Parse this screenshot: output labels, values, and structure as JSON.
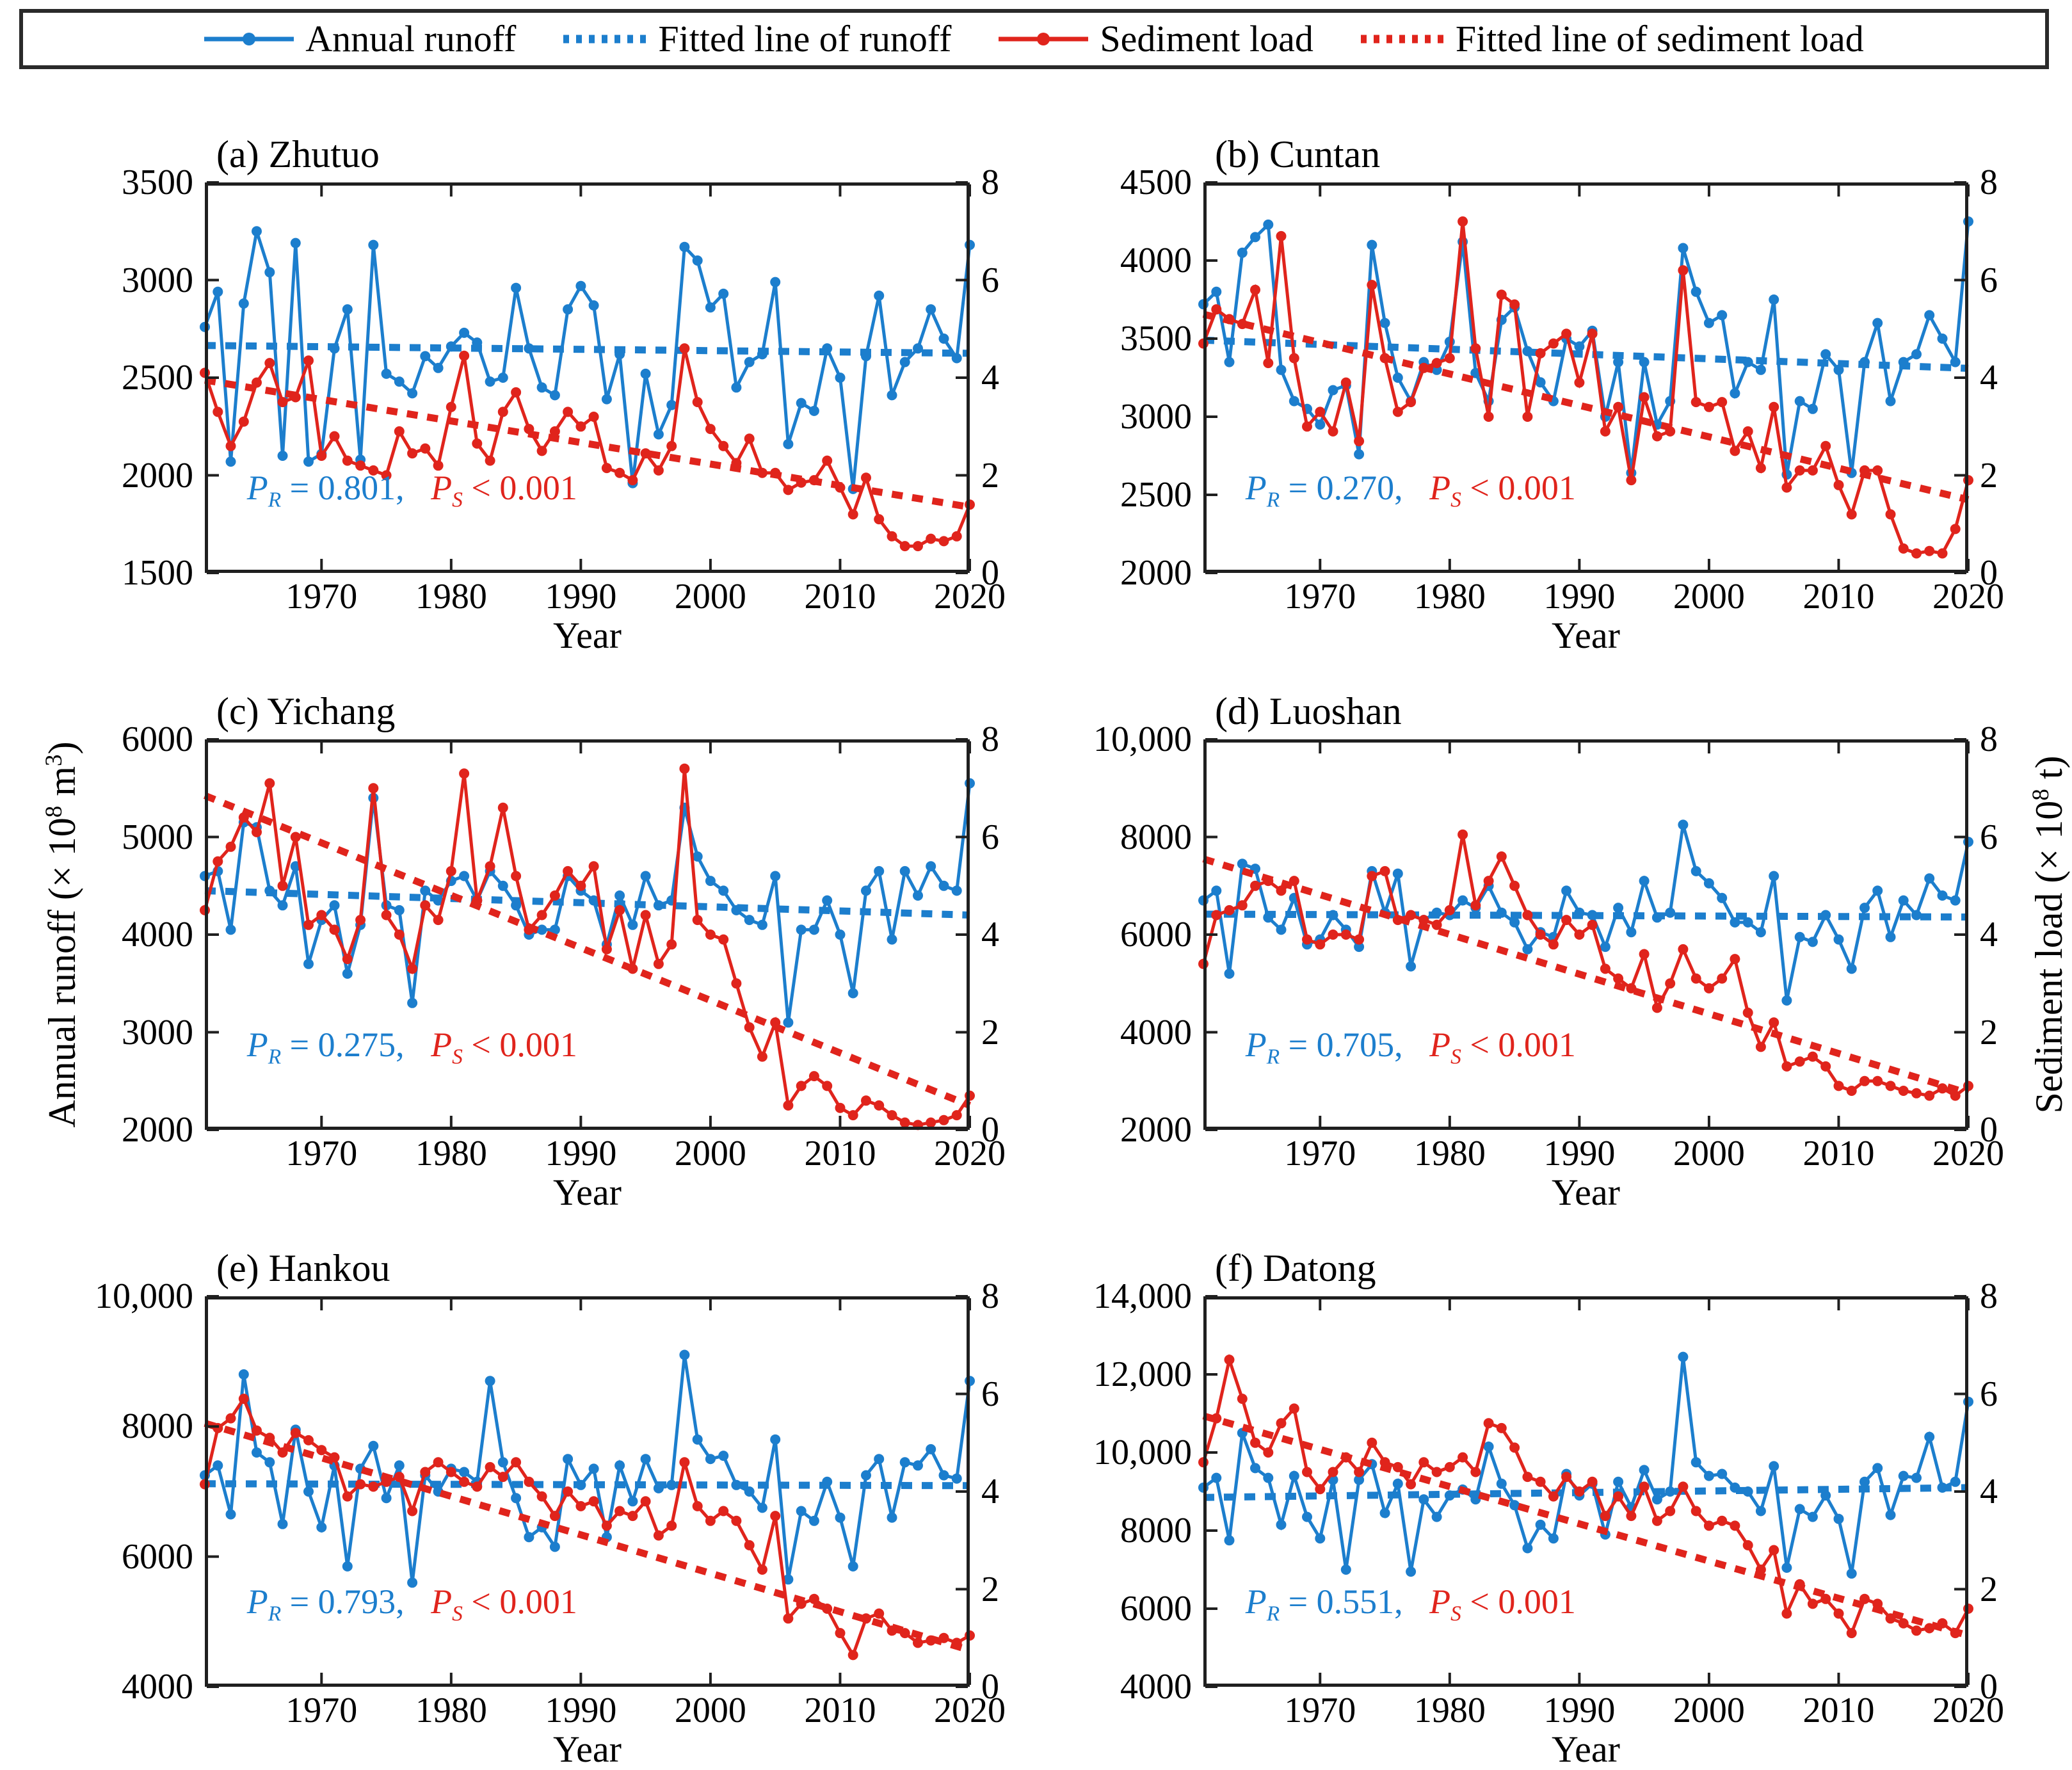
{
  "colors": {
    "runoff": "#1c7ecd",
    "sediment": "#e0241c",
    "spine": "#1f1f1f"
  },
  "legend": {
    "items": [
      {
        "name": "annual-runoff",
        "label": "Annual runoff",
        "style": "line-marker",
        "series": "runoff"
      },
      {
        "name": "fitted-line-of-runoff",
        "label": "Fitted line of runoff",
        "style": "dashed",
        "series": "runoff"
      },
      {
        "name": "sediment-load",
        "label": "Sediment load",
        "style": "line-marker",
        "series": "sediment"
      },
      {
        "name": "fitted-line-of-sediment-load",
        "label": "Fitted line of sediment load",
        "style": "dashed",
        "series": "sediment"
      }
    ]
  },
  "axes": {
    "left_label": "Annual runoff (× 10^8 m^3)",
    "right_label": "Sediment load (× 10^8 t)",
    "x_label": "Year",
    "x_start": 1961,
    "x_end": 2020,
    "x_ticks": [
      1970,
      1980,
      1990,
      2000,
      2010,
      2020
    ],
    "right_ticks": [
      0,
      2,
      4,
      6,
      8
    ],
    "right_lim": [
      0,
      8
    ]
  },
  "annotation_glyphs": {
    "p": "P",
    "sub_r": "R",
    "sub_s": "S"
  },
  "chart_data": [
    {
      "type": "line",
      "id": "a",
      "title": "(a) Zhutuo",
      "station": "Zhutuo",
      "ylim_left": [
        1500,
        3500
      ],
      "yticks_left": [
        "1500",
        "2000",
        "2500",
        "3000",
        "3500"
      ],
      "pr": "= 0.801",
      "ps": "< 0.001",
      "runoff": [
        2760,
        2940,
        2070,
        2880,
        3250,
        3040,
        2100,
        3190,
        2070,
        2110,
        2650,
        2850,
        2080,
        3180,
        2520,
        2480,
        2420,
        2610,
        2550,
        2660,
        2730,
        2680,
        2480,
        2500,
        2960,
        2650,
        2450,
        2410,
        2850,
        2970,
        2870,
        2390,
        2620,
        1960,
        2520,
        2210,
        2360,
        3170,
        3100,
        2860,
        2930,
        2450,
        2580,
        2620,
        2990,
        2160,
        2370,
        2330,
        2650,
        2500,
        1930,
        2610,
        2920,
        2410,
        2580,
        2650,
        2850,
        2700,
        2600,
        3180
      ],
      "sediment": [
        4.1,
        3.3,
        2.6,
        3.1,
        3.9,
        4.3,
        3.5,
        3.6,
        4.35,
        2.4,
        2.8,
        2.3,
        2.2,
        2.1,
        2.0,
        2.9,
        2.45,
        2.55,
        2.2,
        3.4,
        4.45,
        2.65,
        2.3,
        3.3,
        3.7,
        2.95,
        2.5,
        2.9,
        3.3,
        3.0,
        3.2,
        2.15,
        2.05,
        1.9,
        2.45,
        2.1,
        2.6,
        4.6,
        3.5,
        2.95,
        2.6,
        2.25,
        2.75,
        2.05,
        2.05,
        1.7,
        1.85,
        1.9,
        2.3,
        1.75,
        1.2,
        1.95,
        1.1,
        0.75,
        0.55,
        0.55,
        0.7,
        0.65,
        0.75,
        1.4
      ],
      "runoff_fit": [
        2665,
        2625
      ],
      "sediment_fit": [
        3.95,
        1.35
      ]
    },
    {
      "type": "line",
      "id": "b",
      "title": "(b) Cuntan",
      "station": "Cuntan",
      "ylim_left": [
        2000,
        4500
      ],
      "yticks_left": [
        "2000",
        "2500",
        "3000",
        "3500",
        "4000",
        "4500"
      ],
      "pr": "= 0.270",
      "ps": "< 0.001",
      "runoff": [
        3720,
        3800,
        3350,
        4050,
        4150,
        4230,
        3300,
        3100,
        3050,
        2950,
        3170,
        3200,
        2760,
        4100,
        3600,
        3250,
        3100,
        3350,
        3300,
        3480,
        4120,
        3280,
        3100,
        3620,
        3700,
        3420,
        3220,
        3100,
        3500,
        3450,
        3550,
        3000,
        3350,
        2640,
        3350,
        2950,
        3100,
        4080,
        3800,
        3600,
        3650,
        3150,
        3350,
        3300,
        3750,
        2630,
        3100,
        3050,
        3400,
        3300,
        2640,
        3350,
        3600,
        3100,
        3350,
        3400,
        3650,
        3500,
        3350,
        4250
      ],
      "sediment": [
        4.7,
        5.4,
        5.2,
        5.1,
        5.8,
        4.3,
        6.9,
        4.4,
        3.0,
        3.3,
        2.9,
        3.9,
        2.7,
        5.9,
        4.4,
        3.3,
        3.5,
        4.2,
        4.3,
        4.4,
        7.2,
        4.6,
        3.2,
        5.7,
        5.5,
        3.2,
        4.5,
        4.7,
        4.9,
        3.9,
        4.9,
        2.9,
        3.4,
        1.9,
        3.6,
        2.8,
        2.9,
        6.2,
        3.5,
        3.4,
        3.5,
        2.5,
        2.9,
        2.15,
        3.4,
        1.75,
        2.1,
        2.1,
        2.6,
        1.8,
        1.2,
        2.1,
        2.1,
        1.2,
        0.5,
        0.4,
        0.45,
        0.4,
        0.9,
        1.9
      ],
      "runoff_fit": [
        3490,
        3310
      ],
      "sediment_fit": [
        5.3,
        1.5
      ]
    },
    {
      "type": "line",
      "id": "c",
      "title": "(c) Yichang",
      "station": "Yichang",
      "ylim_left": [
        2000,
        6000
      ],
      "yticks_left": [
        "2000",
        "3000",
        "4000",
        "5000",
        "6000"
      ],
      "pr": "= 0.275",
      "ps": "< 0.001",
      "runoff": [
        4600,
        4650,
        4050,
        5150,
        5100,
        4450,
        4300,
        4700,
        3700,
        4150,
        4300,
        3600,
        4100,
        5400,
        4300,
        4250,
        3300,
        4450,
        4350,
        4550,
        4600,
        4350,
        4650,
        4500,
        4300,
        4000,
        4050,
        4050,
        4600,
        4450,
        4350,
        3900,
        4400,
        4100,
        4600,
        4300,
        4350,
        5300,
        4800,
        4550,
        4450,
        4250,
        4150,
        4100,
        4600,
        3100,
        4050,
        4050,
        4350,
        4000,
        3400,
        4450,
        4650,
        3950,
        4650,
        4400,
        4700,
        4500,
        4450,
        5550
      ],
      "sediment": [
        4.5,
        5.5,
        5.8,
        6.4,
        6.1,
        7.1,
        5.0,
        6.0,
        4.2,
        4.4,
        4.1,
        3.5,
        4.3,
        7.0,
        4.4,
        4.0,
        3.3,
        4.6,
        4.3,
        5.3,
        7.3,
        4.7,
        5.4,
        6.6,
        5.2,
        4.1,
        4.4,
        4.8,
        5.3,
        5.0,
        5.4,
        3.7,
        4.5,
        3.3,
        4.4,
        3.4,
        3.8,
        7.4,
        4.3,
        4.0,
        3.9,
        3.0,
        2.1,
        1.5,
        2.2,
        0.5,
        0.9,
        1.1,
        0.9,
        0.45,
        0.3,
        0.6,
        0.5,
        0.3,
        0.15,
        0.1,
        0.15,
        0.2,
        0.3,
        0.7
      ],
      "runoff_fit": [
        4450,
        4200
      ],
      "sediment_fit": [
        6.85,
        0.5
      ]
    },
    {
      "type": "line",
      "id": "d",
      "title": "(d) Luoshan",
      "station": "Luoshan",
      "ylim_left": [
        2000,
        10000
      ],
      "yticks_left": [
        "2000",
        "4000",
        "6000",
        "8000",
        "10,000"
      ],
      "pr": "= 0.705",
      "ps": "< 0.001",
      "runoff": [
        6700,
        6900,
        5200,
        7450,
        7350,
        6350,
        6100,
        6750,
        5800,
        5900,
        6400,
        6100,
        5750,
        7300,
        6450,
        7250,
        5350,
        6300,
        6450,
        6400,
        6700,
        6550,
        7000,
        6450,
        6250,
        5700,
        6050,
        5950,
        6900,
        6450,
        6400,
        5750,
        6550,
        6050,
        7100,
        6350,
        6450,
        8250,
        7300,
        7050,
        6750,
        6250,
        6250,
        6050,
        7200,
        4650,
        5950,
        5850,
        6400,
        5900,
        5300,
        6550,
        6900,
        5950,
        6700,
        6400,
        7150,
        6800,
        6700,
        7900
      ],
      "sediment": [
        3.4,
        4.4,
        4.5,
        4.6,
        5.0,
        5.1,
        4.9,
        5.1,
        3.9,
        3.8,
        4.0,
        4.0,
        3.9,
        5.2,
        5.3,
        4.3,
        4.4,
        4.3,
        4.2,
        4.5,
        6.05,
        4.6,
        5.1,
        5.6,
        5.0,
        4.4,
        4.0,
        3.8,
        4.3,
        4.0,
        4.2,
        3.3,
        3.1,
        2.9,
        3.6,
        2.5,
        3.0,
        3.7,
        3.1,
        2.9,
        3.1,
        3.5,
        2.4,
        1.7,
        2.2,
        1.3,
        1.4,
        1.5,
        1.3,
        0.9,
        0.8,
        1.0,
        1.0,
        0.9,
        0.8,
        0.75,
        0.7,
        0.85,
        0.7,
        0.9
      ],
      "runoff_fit": [
        6420,
        6360
      ],
      "sediment_fit": [
        5.55,
        0.75
      ]
    },
    {
      "type": "line",
      "id": "e",
      "title": "(e) Hankou",
      "station": "Hankou",
      "ylim_left": [
        4000,
        10000
      ],
      "yticks_left": [
        "4000",
        "6000",
        "8000",
        "10,000"
      ],
      "pr": "= 0.793",
      "ps": "< 0.001",
      "runoff": [
        7250,
        7400,
        6650,
        8800,
        7600,
        7450,
        6500,
        7950,
        7000,
        6450,
        7400,
        5850,
        7350,
        7700,
        6900,
        7400,
        5600,
        7250,
        7000,
        7350,
        7300,
        7150,
        8700,
        7450,
        6900,
        6300,
        6450,
        6150,
        7500,
        7100,
        7350,
        6300,
        7400,
        6850,
        7500,
        7050,
        7100,
        9100,
        7800,
        7500,
        7550,
        7100,
        7000,
        6750,
        7800,
        5650,
        6700,
        6550,
        7150,
        6600,
        5850,
        7250,
        7500,
        6600,
        7450,
        7400,
        7650,
        7250,
        7200,
        8700
      ],
      "sediment": [
        4.15,
        5.3,
        5.5,
        5.9,
        5.25,
        5.1,
        4.8,
        5.2,
        5.05,
        4.85,
        4.7,
        3.9,
        4.15,
        4.1,
        4.2,
        4.3,
        3.6,
        4.4,
        4.6,
        4.4,
        4.2,
        4.1,
        4.5,
        4.3,
        4.6,
        4.2,
        3.9,
        3.5,
        4.0,
        3.7,
        3.8,
        3.3,
        3.6,
        3.5,
        3.8,
        3.1,
        3.3,
        4.6,
        3.7,
        3.4,
        3.6,
        3.4,
        2.9,
        2.4,
        3.5,
        1.4,
        1.7,
        1.8,
        1.6,
        1.1,
        0.65,
        1.4,
        1.5,
        1.15,
        1.1,
        0.9,
        0.95,
        1.0,
        0.9,
        1.05
      ],
      "runoff_fit": [
        7120,
        7090
      ],
      "sediment_fit": [
        5.4,
        0.75
      ]
    },
    {
      "type": "line",
      "id": "f",
      "title": "(f) Datong",
      "station": "Datong",
      "ylim_left": [
        4000,
        14000
      ],
      "yticks_left": [
        "4000",
        "6000",
        "8000",
        "10,000",
        "12,000",
        "14,000"
      ],
      "pr": "= 0.551",
      "ps": "< 0.001",
      "runoff": [
        9100,
        9350,
        7750,
        10500,
        9600,
        9350,
        8150,
        9400,
        8350,
        7800,
        9300,
        7000,
        9300,
        9700,
        8450,
        9200,
        6950,
        8800,
        8350,
        8900,
        9050,
        8800,
        10150,
        9200,
        8650,
        7550,
        8150,
        7800,
        9450,
        8900,
        9200,
        7900,
        9250,
        8600,
        9550,
        8800,
        9000,
        12450,
        9750,
        9400,
        9450,
        9100,
        9000,
        8500,
        9650,
        7050,
        8550,
        8350,
        8900,
        8300,
        6900,
        9250,
        9600,
        8400,
        9400,
        9350,
        10400,
        9100,
        9250,
        11300
      ],
      "sediment": [
        4.6,
        5.5,
        6.7,
        5.9,
        5.0,
        4.8,
        5.4,
        5.7,
        4.4,
        4.05,
        4.4,
        4.7,
        4.4,
        5.0,
        4.6,
        4.5,
        4.15,
        4.6,
        4.4,
        4.5,
        4.7,
        4.4,
        5.4,
        5.3,
        4.9,
        4.3,
        4.2,
        3.9,
        4.3,
        4.0,
        4.2,
        3.5,
        3.9,
        3.5,
        4.1,
        3.4,
        3.6,
        4.1,
        3.6,
        3.3,
        3.4,
        3.3,
        2.9,
        2.4,
        2.8,
        1.5,
        2.1,
        1.7,
        1.8,
        1.5,
        1.1,
        1.8,
        1.7,
        1.4,
        1.3,
        1.15,
        1.2,
        1.3,
        1.1,
        1.6
      ],
      "runoff_fit": [
        8850,
        9100
      ],
      "sediment_fit": [
        5.55,
        1.05
      ]
    }
  ]
}
